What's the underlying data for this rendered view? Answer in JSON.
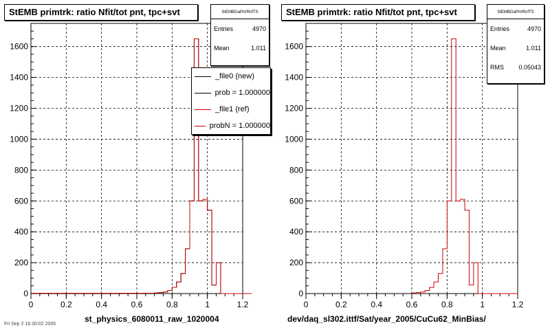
{
  "footer_text": "Fri Sep  2 16:30:02 2005",
  "chart_data": [
    {
      "type": "histogram",
      "title": "StEMB primtrk: ratio Nfit/tot pnt, tpc+svt",
      "xlabel": "st_physics_6080011_raw_1020004",
      "ylabel": "",
      "xlim": [
        0,
        1.2
      ],
      "ylim": [
        0,
        1750
      ],
      "xticks": [
        "0",
        "0.2",
        "0.4",
        "0.6",
        "0.8",
        "1",
        "1.2"
      ],
      "yticks": [
        "0",
        "200",
        "400",
        "600",
        "800",
        "1000",
        "1200",
        "1400",
        "1600"
      ],
      "grid": true,
      "bin_width": 0.025,
      "x_start": 0,
      "stats": {
        "name": "StEMBGaPrtrRnfTS",
        "entries_label": "Entries",
        "entries": "4970",
        "mean_label": "Mean",
        "mean": "1.011"
      },
      "legend": {
        "placement": "top-right",
        "entries": [
          {
            "label": "_file0 (new)",
            "color": "#000000"
          },
          {
            "label": "prob = 1.000000",
            "color": "#000000"
          },
          {
            "label": "_file1 (ref)",
            "color": "#cc0000"
          },
          {
            "label": "probN = 1.000000",
            "color": "#cc0000"
          }
        ]
      },
      "series": [
        {
          "name": "_file0 (new)",
          "color": "#000000",
          "values": [
            2,
            2,
            2,
            2,
            2,
            2,
            2,
            2,
            2,
            2,
            2,
            2,
            2,
            2,
            2,
            2,
            2,
            2,
            2,
            2,
            2,
            2,
            2,
            2,
            2,
            2,
            2,
            2,
            4,
            6,
            10,
            20,
            40,
            75,
            130,
            290,
            600,
            1650,
            600,
            610,
            540,
            55,
            200,
            0,
            0,
            0,
            0,
            0,
            0,
            0
          ]
        },
        {
          "name": "_file1 (ref)",
          "color": "#cc0000",
          "values": [
            2,
            2,
            2,
            2,
            2,
            2,
            2,
            2,
            2,
            2,
            2,
            2,
            2,
            2,
            2,
            2,
            2,
            2,
            2,
            2,
            2,
            2,
            2,
            2,
            2,
            2,
            2,
            2,
            4,
            6,
            10,
            20,
            40,
            75,
            130,
            290,
            600,
            1650,
            600,
            610,
            540,
            55,
            200,
            0,
            0,
            0,
            0,
            0,
            0,
            0
          ]
        }
      ]
    },
    {
      "type": "histogram",
      "title": "StEMB primtrk: ratio Nfit/tot pnt, tpc+svt",
      "xlabel": "dev/daq_sl302.ittf/Sat/year_2005/CuCu62_MinBias/",
      "ylabel": "",
      "xlim": [
        0,
        1.2
      ],
      "ylim": [
        0,
        1750
      ],
      "xticks": [
        "0",
        "0.2",
        "0.4",
        "0.6",
        "0.8",
        "1",
        "1.2"
      ],
      "yticks": [
        "0",
        "200",
        "400",
        "600",
        "800",
        "1000",
        "1200",
        "1400",
        "1600"
      ],
      "grid": true,
      "bin_width": 0.025,
      "x_start": 0.6,
      "stats": {
        "name": "StEMBGaPrtrRnfTS",
        "entries_label": "Entries",
        "entries": "4970",
        "mean_label": "Mean",
        "mean": "1.011",
        "rms_label": "RMS",
        "rms": "0.05043"
      },
      "series": [
        {
          "name": "",
          "color": "#cc0000",
          "values": [
            4,
            6,
            10,
            20,
            40,
            75,
            130,
            290,
            600,
            1650,
            600,
            610,
            540,
            55,
            200,
            0,
            0,
            0,
            0,
            0,
            0,
            0,
            0,
            0
          ]
        }
      ]
    }
  ]
}
